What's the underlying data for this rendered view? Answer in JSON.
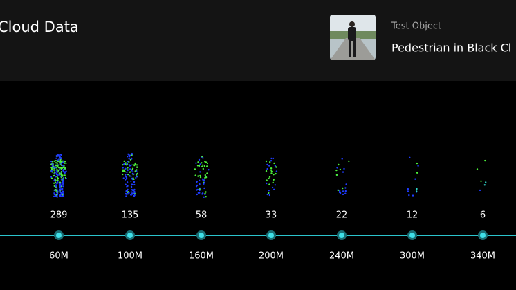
{
  "header": {
    "title": "Cloud Data"
  },
  "test_object": {
    "label": "Test Object",
    "name": "Pedestrian in Black Cl"
  },
  "items": [
    {
      "count": 289,
      "distance": "60M"
    },
    {
      "count": 135,
      "distance": "100M"
    },
    {
      "count": 58,
      "distance": "160M"
    },
    {
      "count": 33,
      "distance": "200M"
    },
    {
      "count": 22,
      "distance": "240M"
    },
    {
      "count": 12,
      "distance": "300M"
    },
    {
      "count": 6,
      "distance": "340M"
    }
  ]
}
